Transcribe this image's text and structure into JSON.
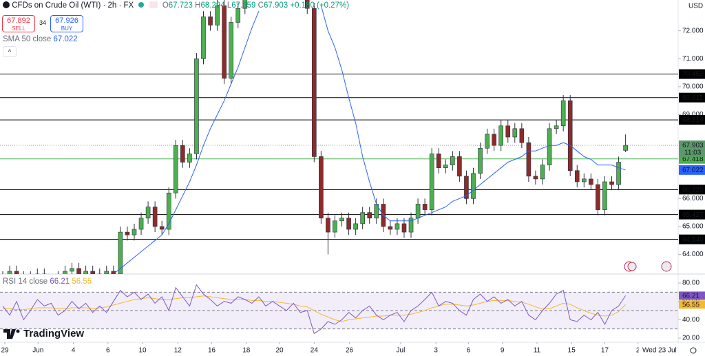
{
  "header": {
    "title": "CFDs on Crude Oil (WTI) · 2h · FX",
    "change": "+0.180 (+0.27%)",
    "sell": {
      "price": "67.892",
      "label": "SELL"
    },
    "spread": "34",
    "buy": {
      "price": "67.926",
      "label": "BUY"
    },
    "currency": "USD",
    "brand": "TradingView"
  },
  "chart_data": {
    "type": "candlestick",
    "up_color": "#4caf50",
    "down_color": "#8d2b2b",
    "wick_color": "#2a2e39",
    "open": [
      63.0,
      63.2,
      63.4,
      63.1,
      63.2,
      63.0,
      63.3,
      63.1,
      63.0,
      63.2,
      63.4,
      63.5,
      63.2,
      63.4,
      63.1,
      63.3,
      63.4,
      63.3,
      64.8,
      64.7,
      64.9,
      65.3,
      65.7,
      65.0,
      64.9,
      66.2,
      67.9,
      67.3,
      67.6,
      71.0,
      72.5,
      72.2,
      72.9,
      70.3,
      72.3,
      72.8,
      73.6,
      74.0,
      74.3,
      74.5,
      74.2,
      74.0,
      73.8,
      73.5,
      73.4,
      72.8,
      67.5,
      65.3,
      64.8,
      65.2,
      65.3,
      64.9,
      65.1,
      65.5,
      65.3,
      65.8,
      65.0,
      64.9,
      65.1,
      64.8,
      65.3,
      65.8,
      65.6,
      67.6,
      67.1,
      67.2,
      67.5,
      66.8,
      66.0,
      66.9,
      67.8,
      68.3,
      67.9,
      68.6,
      68.2,
      68.5,
      68.0,
      66.8,
      66.7,
      67.2,
      68.5,
      68.6,
      69.5,
      67.0,
      66.6,
      66.7,
      66.5,
      65.6,
      66.6,
      66.5,
      67.723
    ],
    "high": [
      63.4,
      63.6,
      63.6,
      63.4,
      63.4,
      63.5,
      63.5,
      63.3,
      63.4,
      63.6,
      63.7,
      63.7,
      63.6,
      63.6,
      63.5,
      63.6,
      63.6,
      65.0,
      65.0,
      65.1,
      65.5,
      65.9,
      65.9,
      65.2,
      66.4,
      68.1,
      68.1,
      67.8,
      71.2,
      72.7,
      72.7,
      73.1,
      73.1,
      72.5,
      73.0,
      73.8,
      74.2,
      74.5,
      74.7,
      74.7,
      74.4,
      74.2,
      74.0,
      73.7,
      73.6,
      73.0,
      67.7,
      65.5,
      65.4,
      65.5,
      65.5,
      65.3,
      65.7,
      65.7,
      66.0,
      66.0,
      65.2,
      65.3,
      65.3,
      65.5,
      66.0,
      66.0,
      67.8,
      67.8,
      67.4,
      67.7,
      67.7,
      67.0,
      67.1,
      68.0,
      68.5,
      68.5,
      68.8,
      68.8,
      68.7,
      68.7,
      68.2,
      67.0,
      67.4,
      68.7,
      68.8,
      69.7,
      69.7,
      67.2,
      66.9,
      66.9,
      66.7,
      66.8,
      66.8,
      67.5,
      68.294
    ],
    "low": [
      62.8,
      63.0,
      62.9,
      62.9,
      62.8,
      62.8,
      62.9,
      62.8,
      62.8,
      63.0,
      63.2,
      63.0,
      63.0,
      62.9,
      62.9,
      63.1,
      63.1,
      63.1,
      64.5,
      64.5,
      64.7,
      65.1,
      64.8,
      64.7,
      64.7,
      66.0,
      67.1,
      67.1,
      67.4,
      70.8,
      72.0,
      72.0,
      70.1,
      70.1,
      72.1,
      72.6,
      73.4,
      73.8,
      74.1,
      74.0,
      73.8,
      73.6,
      73.3,
      73.2,
      72.6,
      67.3,
      65.1,
      64.0,
      64.6,
      65.0,
      64.7,
      64.7,
      64.9,
      65.1,
      65.1,
      64.8,
      64.7,
      64.7,
      64.6,
      64.6,
      65.1,
      65.4,
      65.4,
      66.9,
      66.9,
      67.0,
      66.6,
      65.8,
      65.8,
      66.7,
      67.6,
      67.7,
      67.7,
      68.0,
      68.0,
      67.8,
      66.6,
      66.5,
      66.5,
      67.0,
      68.3,
      68.4,
      66.8,
      66.4,
      66.4,
      66.3,
      65.4,
      65.4,
      66.3,
      66.3,
      67.659
    ],
    "close": [
      63.2,
      63.4,
      63.1,
      63.2,
      63.0,
      63.3,
      63.1,
      63.0,
      63.2,
      63.4,
      63.5,
      63.2,
      63.4,
      63.1,
      63.3,
      63.4,
      63.3,
      64.8,
      64.7,
      64.9,
      65.3,
      65.7,
      65.0,
      64.9,
      66.2,
      67.9,
      67.3,
      67.6,
      71.0,
      72.5,
      72.2,
      72.9,
      70.3,
      72.3,
      72.8,
      73.6,
      74.0,
      74.3,
      74.5,
      74.2,
      74.0,
      73.8,
      73.5,
      73.4,
      72.8,
      67.5,
      65.3,
      64.8,
      65.2,
      65.3,
      64.9,
      65.1,
      65.5,
      65.3,
      65.8,
      65.0,
      64.9,
      65.1,
      64.8,
      65.3,
      65.8,
      65.6,
      67.6,
      67.1,
      67.2,
      67.5,
      66.8,
      66.0,
      66.9,
      67.8,
      68.3,
      67.9,
      68.6,
      68.2,
      68.5,
      68.0,
      66.8,
      66.7,
      67.2,
      68.5,
      68.6,
      69.5,
      67.0,
      66.6,
      66.7,
      66.5,
      65.6,
      66.6,
      66.5,
      67.3,
      67.903
    ],
    "countdown": "11:03",
    "xlim": [
      -0.4,
      97.6
    ],
    "ylim": [
      63.3,
      73.1
    ],
    "yticks": [
      {
        "value": 72,
        "label": "72.000"
      },
      {
        "value": 71,
        "label": "71.000"
      },
      {
        "value": 70,
        "label": "70.000"
      },
      {
        "value": 69,
        "label": "69.000"
      },
      {
        "value": 66,
        "label": "66.000"
      },
      {
        "value": 65,
        "label": "65.000"
      },
      {
        "value": 64,
        "label": "64.000"
      }
    ],
    "xticks": [
      {
        "value": 0.3,
        "label": "29"
      },
      {
        "value": 5.1,
        "label": "Jun"
      },
      {
        "value": 10.2,
        "label": "4"
      },
      {
        "value": 15.2,
        "label": "6"
      },
      {
        "value": 20.2,
        "label": "10"
      },
      {
        "value": 25.3,
        "label": "12"
      },
      {
        "value": 30.2,
        "label": "16"
      },
      {
        "value": 35.2,
        "label": "18"
      },
      {
        "value": 40.0,
        "label": "20"
      },
      {
        "value": 45.0,
        "label": "24"
      },
      {
        "value": 50.1,
        "label": "26"
      },
      {
        "value": 57.5,
        "label": "Jul"
      },
      {
        "value": 62.6,
        "label": "3"
      },
      {
        "value": 67.3,
        "label": "6"
      },
      {
        "value": 72.2,
        "label": "9"
      },
      {
        "value": 77.2,
        "label": "11"
      },
      {
        "value": 82.2,
        "label": "15"
      },
      {
        "value": 87.0,
        "label": "17"
      },
      {
        "value": 91.8,
        "label": "2"
      }
    ],
    "cursor_label": {
      "value": 94.9,
      "label": "Wed 23 Jul"
    },
    "levels": [
      70.452,
      69.611,
      68.814,
      {
        "value": 66.32,
        "label": "66.320"
      },
      65.427,
      {
        "value": 64.54,
        "label": "64.540"
      }
    ],
    "level_color": "#000000",
    "ref_line": {
      "value": 67.418,
      "color": "#4caf50"
    },
    "sma": {
      "name": "SMA 50 close",
      "color": "#2962ff",
      "values": [
        null,
        null,
        null,
        null,
        null,
        null,
        null,
        null,
        null,
        null,
        null,
        null,
        null,
        null,
        null,
        null,
        63.3,
        63.5,
        63.7,
        63.9,
        64.1,
        64.3,
        64.5,
        64.7,
        65.1,
        65.6,
        66.1,
        66.6,
        67.2,
        67.9,
        68.5,
        69.0,
        69.5,
        70.1,
        70.7,
        71.4,
        72.1,
        72.7,
        null,
        null,
        null,
        null,
        null,
        null,
        null,
        null,
        72.9,
        72.0,
        71.4,
        70.6,
        69.6,
        68.7,
        67.5,
        66.6,
        65.8,
        65.4,
        65.2,
        65.2,
        65.2,
        65.2,
        65.3,
        65.4,
        65.5,
        65.6,
        65.7,
        65.9,
        66.0,
        66.1,
        66.3,
        66.5,
        66.7,
        66.9,
        67.1,
        67.3,
        67.4,
        67.5,
        67.7,
        67.7,
        67.8,
        67.9,
        67.9,
        68.0,
        67.9,
        67.7,
        67.5,
        67.4,
        67.2,
        67.2,
        67.2,
        67.1,
        67.022
      ]
    },
    "rsi": {
      "name": "RSI 14 close",
      "color": "#7e57c2",
      "ma_color": "#f5b92e",
      "values": [
        55,
        45,
        60,
        40,
        50,
        62,
        55,
        58,
        45,
        50,
        60,
        52,
        58,
        48,
        55,
        48,
        60,
        72,
        65,
        70,
        62,
        68,
        58,
        65,
        50,
        75,
        65,
        55,
        78,
        68,
        62,
        55,
        60,
        58,
        65,
        62,
        58,
        65,
        55,
        60,
        55,
        50,
        58,
        48,
        50,
        25,
        30,
        38,
        35,
        40,
        48,
        42,
        50,
        55,
        45,
        40,
        45,
        48,
        38,
        50,
        55,
        62,
        70,
        55,
        60,
        58,
        50,
        45,
        62,
        68,
        60,
        65,
        58,
        62,
        55,
        60,
        45,
        40,
        50,
        58,
        68,
        72,
        40,
        38,
        45,
        40,
        48,
        35,
        50,
        55,
        66.21
      ],
      "ma_values": [
        52,
        52,
        51,
        51,
        52,
        53,
        53,
        53,
        52,
        52,
        53,
        53,
        53,
        52,
        53,
        54,
        56,
        58,
        60,
        62,
        63,
        64,
        63,
        62,
        62,
        63,
        64,
        64,
        65,
        66,
        65,
        64,
        63,
        62,
        62,
        62,
        61,
        61,
        60,
        60,
        59,
        58,
        57,
        55,
        54,
        50,
        46,
        43,
        40,
        38,
        40,
        41,
        42,
        43,
        44,
        44,
        45,
        45,
        45,
        46,
        48,
        50,
        53,
        55,
        57,
        57,
        56,
        55,
        56,
        58,
        60,
        61,
        61,
        61,
        60,
        59,
        57,
        54,
        52,
        52,
        55,
        58,
        57,
        53,
        50,
        47,
        45,
        44,
        45,
        49,
        56.55
      ],
      "ylim": [
        17,
        88.3
      ],
      "yticks": [
        {
          "value": 80,
          "label": "80.00"
        },
        {
          "value": 60,
          "label": "60.00"
        },
        {
          "value": 40,
          "label": "40.00"
        },
        {
          "value": 20,
          "label": "20.00"
        }
      ],
      "bands": [
        70,
        50,
        30
      ]
    }
  }
}
